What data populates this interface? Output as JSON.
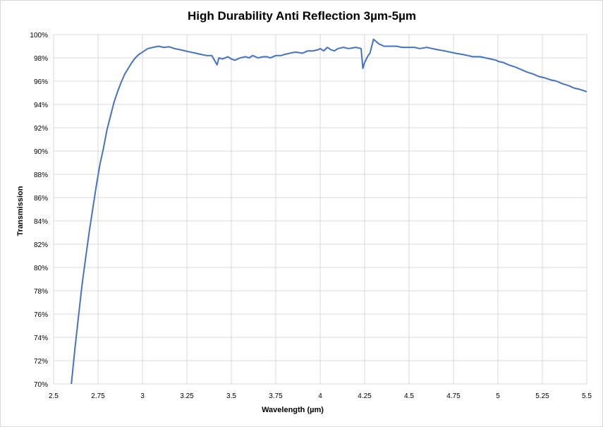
{
  "chart_data": {
    "type": "line",
    "title": "High Durability Anti Reflection 3µm-5µm",
    "xlabel": "Wavelength (µm)",
    "ylabel": "Transmission",
    "xlim": [
      2.5,
      5.5
    ],
    "ylim": [
      70,
      100
    ],
    "x_ticks": [
      2.5,
      2.75,
      3,
      3.25,
      3.5,
      3.75,
      4,
      4.25,
      4.5,
      4.75,
      5,
      5.25,
      5.5
    ],
    "x_tick_labels": [
      "2.5",
      "2.75",
      "3",
      "3.25",
      "3.5",
      "3.75",
      "4",
      "4.25",
      "4.5",
      "4.75",
      "5",
      "5.25",
      "5.5"
    ],
    "y_ticks": [
      70,
      72,
      74,
      76,
      78,
      80,
      82,
      84,
      86,
      88,
      90,
      92,
      94,
      96,
      98,
      100
    ],
    "y_tick_labels": [
      "70%",
      "72%",
      "74%",
      "76%",
      "78%",
      "80%",
      "82%",
      "84%",
      "86%",
      "88%",
      "90%",
      "92%",
      "94%",
      "96%",
      "98%",
      "100%"
    ],
    "grid": true,
    "legend": "none",
    "line_color": "#4472c4",
    "grid_color": "#d9d9d9",
    "series": [
      {
        "x": [
          2.6,
          2.62,
          2.64,
          2.66,
          2.68,
          2.7,
          2.72,
          2.74,
          2.76,
          2.78,
          2.8,
          2.82,
          2.84,
          2.86,
          2.88,
          2.9,
          2.92,
          2.94,
          2.96,
          2.98,
          3.0,
          3.03,
          3.06,
          3.09,
          3.12,
          3.15,
          3.18,
          3.21,
          3.24,
          3.27,
          3.3,
          3.33,
          3.36,
          3.39,
          3.42,
          3.43,
          3.45,
          3.48,
          3.5,
          3.52,
          3.55,
          3.58,
          3.6,
          3.62,
          3.65,
          3.68,
          3.7,
          3.72,
          3.75,
          3.78,
          3.8,
          3.83,
          3.86,
          3.9,
          3.93,
          3.96,
          3.99,
          4.0,
          4.02,
          4.04,
          4.06,
          4.08,
          4.1,
          4.13,
          4.16,
          4.2,
          4.23,
          4.24,
          4.25,
          4.27,
          4.28,
          4.3,
          4.33,
          4.36,
          4.4,
          4.43,
          4.46,
          4.5,
          4.53,
          4.56,
          4.6,
          4.63,
          4.66,
          4.7,
          4.73,
          4.76,
          4.8,
          4.83,
          4.86,
          4.9,
          4.93,
          4.96,
          4.99,
          5.0,
          5.03,
          5.06,
          5.1,
          5.13,
          5.16,
          5.2,
          5.23,
          5.26,
          5.3,
          5.33,
          5.36,
          5.4,
          5.43,
          5.46,
          5.5
        ],
        "y": [
          70.0,
          73.0,
          75.8,
          78.5,
          80.8,
          83.0,
          85.0,
          87.0,
          88.8,
          90.2,
          91.8,
          93.0,
          94.2,
          95.1,
          95.9,
          96.6,
          97.1,
          97.6,
          98.0,
          98.3,
          98.5,
          98.8,
          98.9,
          99.0,
          98.9,
          98.95,
          98.8,
          98.7,
          98.6,
          98.5,
          98.4,
          98.3,
          98.2,
          98.2,
          97.4,
          98.0,
          97.9,
          98.1,
          97.9,
          97.8,
          98.0,
          98.1,
          98.0,
          98.2,
          98.0,
          98.1,
          98.1,
          98.0,
          98.2,
          98.2,
          98.3,
          98.4,
          98.5,
          98.4,
          98.6,
          98.6,
          98.7,
          98.8,
          98.6,
          98.9,
          98.7,
          98.6,
          98.8,
          98.9,
          98.8,
          98.9,
          98.8,
          97.1,
          97.6,
          98.2,
          98.4,
          99.6,
          99.2,
          99.0,
          99.0,
          99.0,
          98.9,
          98.9,
          98.9,
          98.8,
          98.9,
          98.8,
          98.7,
          98.6,
          98.5,
          98.4,
          98.3,
          98.2,
          98.1,
          98.1,
          98.0,
          97.9,
          97.8,
          97.7,
          97.6,
          97.4,
          97.2,
          97.0,
          96.8,
          96.6,
          96.4,
          96.3,
          96.1,
          96.0,
          95.8,
          95.6,
          95.4,
          95.3,
          95.1
        ]
      }
    ]
  }
}
